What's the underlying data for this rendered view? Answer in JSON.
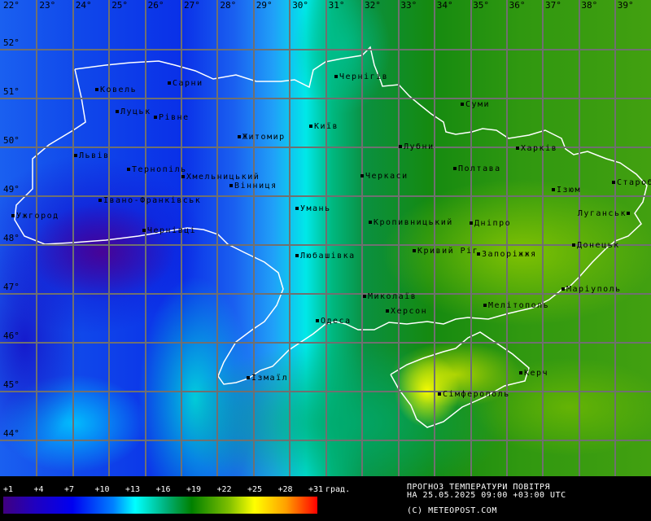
{
  "map": {
    "longitudes": [
      "22°",
      "23°",
      "24°",
      "25°",
      "26°",
      "27°",
      "28°",
      "29°",
      "30°",
      "31°",
      "32°",
      "33°",
      "34°",
      "35°",
      "36°",
      "37°",
      "38°",
      "39°"
    ],
    "latitudes": [
      "52°",
      "51°",
      "50°",
      "49°",
      "48°",
      "47°",
      "46°",
      "45°",
      "44°"
    ],
    "cities": [
      {
        "name": "Ковель"
      },
      {
        "name": "Сарни"
      },
      {
        "name": "Луцьк"
      },
      {
        "name": "Рівне"
      },
      {
        "name": "Житомир"
      },
      {
        "name": "Київ"
      },
      {
        "name": "Чернігів"
      },
      {
        "name": "Суми"
      },
      {
        "name": "Львів"
      },
      {
        "name": "Тернопіль"
      },
      {
        "name": "Хмельницький"
      },
      {
        "name": "Вінниця"
      },
      {
        "name": "Лубни"
      },
      {
        "name": "Харків"
      },
      {
        "name": "Полтава"
      },
      {
        "name": "Черкаси"
      },
      {
        "name": "Ізюм"
      },
      {
        "name": "Старобільськ"
      },
      {
        "name": "Івано-Франківськ"
      },
      {
        "name": "Ужгород"
      },
      {
        "name": "Умань"
      },
      {
        "name": "Кропивницький"
      },
      {
        "name": "Дніпро"
      },
      {
        "name": "Луганськ"
      },
      {
        "name": "Чернівці"
      },
      {
        "name": "Любашівка"
      },
      {
        "name": "Кривий Ріг"
      },
      {
        "name": "Запоріжжя"
      },
      {
        "name": "Донецьк"
      },
      {
        "name": "Маріуполь"
      },
      {
        "name": "Миколаїв"
      },
      {
        "name": "Херсон"
      },
      {
        "name": "Мелітополь"
      },
      {
        "name": "Одеса"
      },
      {
        "name": "Ізмаїл"
      },
      {
        "name": "Керч"
      },
      {
        "name": "Сімферополь"
      }
    ]
  },
  "legend": {
    "ticks": [
      "+1",
      "+4",
      "+7",
      "+10",
      "+13",
      "+16",
      "+19",
      "+22",
      "+25",
      "+28",
      "+31"
    ],
    "unit": "град.",
    "colors": [
      "#400080",
      "#0000f0",
      "#0080ff",
      "#00ffff",
      "#00b078",
      "#008000",
      "#80c000",
      "#ffff00",
      "#ffa000",
      "#ff0000"
    ]
  },
  "info": {
    "title": "ПРОГНОЗ ТЕМПЕРАТУРИ ПОВІТРЯ",
    "datetime": "НА 25.05.2025 09:00 +03:00 UTC",
    "copyright": "(C) METEOPOST.COM"
  }
}
